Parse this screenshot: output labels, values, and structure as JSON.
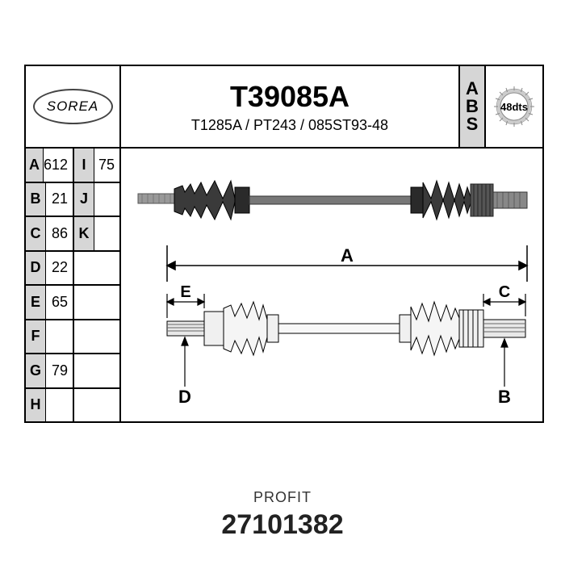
{
  "logo": "SOREA",
  "main_part_number": "T39085A",
  "sub_part_numbers": "T1285A / PT243 / 085ST93-48",
  "abs_label": "ABS",
  "gear_teeth": "48dts",
  "specs_left": [
    {
      "label": "A",
      "value": "612"
    },
    {
      "label": "B",
      "value": "21"
    },
    {
      "label": "C",
      "value": "86"
    },
    {
      "label": "D",
      "value": "22"
    },
    {
      "label": "E",
      "value": "65"
    },
    {
      "label": "F",
      "value": ""
    },
    {
      "label": "G",
      "value": "79"
    },
    {
      "label": "H",
      "value": ""
    }
  ],
  "specs_right": [
    {
      "label": "I",
      "value": "75"
    },
    {
      "label": "J",
      "value": ""
    },
    {
      "label": "K",
      "value": ""
    }
  ],
  "diagram_labels": {
    "A": "A",
    "B": "B",
    "C": "C",
    "D": "D",
    "E": "E"
  },
  "footer_brand": "PROFIT",
  "footer_part": "27101382",
  "colors": {
    "border": "#000000",
    "shade": "#d6d6d6",
    "background": "#ffffff",
    "gear_body": "#cccccc"
  }
}
